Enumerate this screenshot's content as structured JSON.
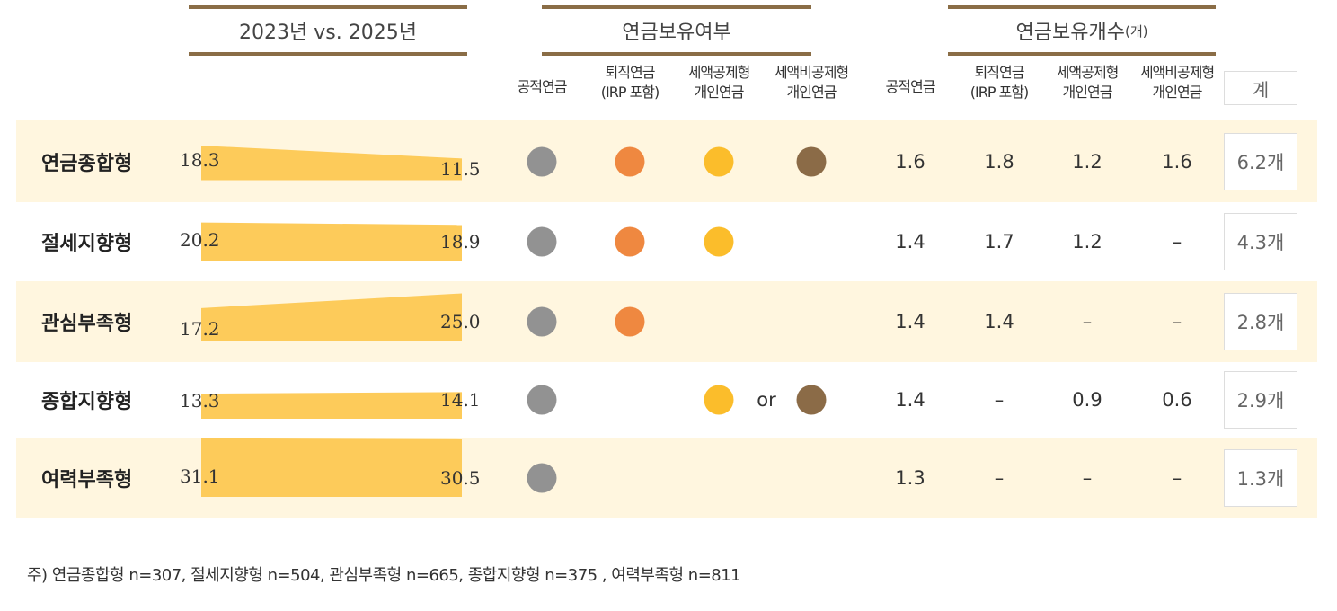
{
  "chart_data": {
    "type": "table",
    "group_headers": {
      "compare": "2023년 vs. 2025년",
      "ownership": "연금보유여부",
      "count": "연금보유개수",
      "count_unit": "(개)"
    },
    "columns": [
      "공적연금",
      "퇴직연금 (IRP 포함)",
      "세액공제형 개인연금",
      "세액비공제형 개인연금"
    ],
    "column_lines": [
      [
        "공적연금",
        ""
      ],
      [
        "퇴직연금",
        "(IRP 포함)"
      ],
      [
        "세액공제형",
        "개인연금"
      ],
      [
        "세액비공제형",
        "개인연금"
      ]
    ],
    "total_header": "계",
    "colors": {
      "public": "#929292",
      "retirement": "#ef8840",
      "deductible": "#fbbd2b",
      "nondeductible": "#8b6b47",
      "bar": "#fdcb5a",
      "shade": "#fff6df"
    },
    "or_label": "or",
    "rows": [
      {
        "name": "연금종합형",
        "y2023": "18.3",
        "y2025": "11.5",
        "own": [
          true,
          true,
          true,
          true
        ],
        "or": false,
        "counts": [
          "1.6",
          "1.8",
          "1.2",
          "1.6"
        ],
        "total": "6.2개"
      },
      {
        "name": "절세지향형",
        "y2023": "20.2",
        "y2025": "18.9",
        "own": [
          true,
          true,
          true,
          false
        ],
        "or": false,
        "counts": [
          "1.4",
          "1.7",
          "1.2",
          "–"
        ],
        "total": "4.3개"
      },
      {
        "name": "관심부족형",
        "y2023": "17.2",
        "y2025": "25.0",
        "own": [
          true,
          true,
          false,
          false
        ],
        "or": false,
        "counts": [
          "1.4",
          "1.4",
          "–",
          "–"
        ],
        "total": "2.8개"
      },
      {
        "name": "종합지향형",
        "y2023": "13.3",
        "y2025": "14.1",
        "own": [
          true,
          false,
          true,
          true
        ],
        "or": true,
        "counts": [
          "1.4",
          "–",
          "0.9",
          "0.6"
        ],
        "total": "2.9개"
      },
      {
        "name": "여력부족형",
        "y2023": "31.1",
        "y2025": "30.5",
        "own": [
          true,
          false,
          false,
          false
        ],
        "or": false,
        "counts": [
          "1.3",
          "–",
          "–",
          "–"
        ],
        "total": "1.3개"
      }
    ]
  },
  "note": "주) 연금종합형 n=307, 절세지향형 n=504, 관심부족형 n=665, 종합지향형 n=375 , 여력부족형 n=811"
}
